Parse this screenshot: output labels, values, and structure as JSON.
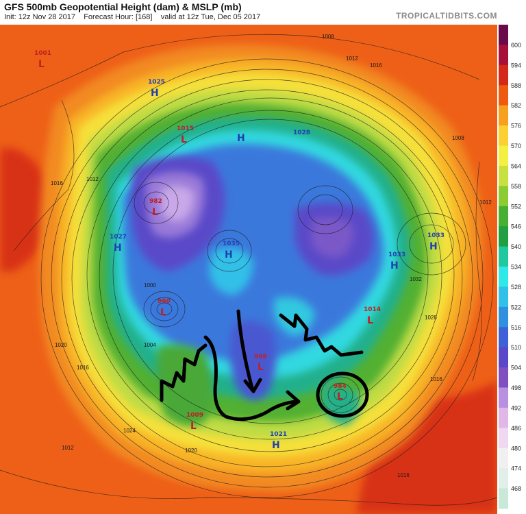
{
  "header": {
    "title": "GFS 500mb Geopotential Height (dam) & MSLP (mb)",
    "init_label": "Init: 12z Nov 28 2017",
    "forecast_label": "Forecast Hour: [168]",
    "valid_label": "valid at 12z Tue, Dec 05 2017",
    "brand": "TROPICALTIDBITS.COM"
  },
  "colorbar": {
    "ticks": [
      "600",
      "594",
      "588",
      "582",
      "576",
      "570",
      "564",
      "558",
      "552",
      "546",
      "540",
      "534",
      "528",
      "522",
      "516",
      "510",
      "504",
      "498",
      "492",
      "486",
      "480",
      "474",
      "468"
    ],
    "colors": [
      "#6a0a4a",
      "#a8103a",
      "#d42818",
      "#ee5a10",
      "#f7a020",
      "#fbd030",
      "#f4f040",
      "#c8e040",
      "#8ccc30",
      "#48b030",
      "#20a040",
      "#20c8a0",
      "#30e8e8",
      "#30c0e8",
      "#3090e0",
      "#4060d8",
      "#5a48c8",
      "#8050c0",
      "#b890e0",
      "#e0b8e8",
      "#f0d8f0",
      "#f0f0f0",
      "#e0f0e8",
      "#c8e8d8"
    ]
  },
  "map": {
    "highs": [
      {
        "id": "h1025",
        "value": "1025",
        "label": "H"
      },
      {
        "id": "h1027",
        "value": "1027",
        "label": "H"
      },
      {
        "id": "h1035",
        "value": "1035",
        "label": "H"
      },
      {
        "id": "h1033a",
        "value": "1033",
        "label": "H"
      },
      {
        "id": "h1033b",
        "value": "1033",
        "label": "H"
      },
      {
        "id": "h1021",
        "value": "1021",
        "label": "H"
      },
      {
        "id": "h1028",
        "value": "1028",
        "label": "H"
      }
    ],
    "lows": [
      {
        "id": "l1001",
        "value": "1001",
        "label": "L"
      },
      {
        "id": "l1015",
        "value": "1015",
        "label": "L"
      },
      {
        "id": "l982",
        "value": "982",
        "label": "L"
      },
      {
        "id": "l960",
        "value": "960",
        "label": "L"
      },
      {
        "id": "l998",
        "value": "998",
        "label": "L"
      },
      {
        "id": "l1009",
        "value": "1009",
        "label": "L"
      },
      {
        "id": "l984",
        "value": "984",
        "label": "L"
      },
      {
        "id": "l1014",
        "value": "1014",
        "label": "L"
      }
    ],
    "isobars": [
      "1016",
      "1012",
      "1020",
      "1024",
      "1008",
      "1004",
      "1000",
      "1028",
      "1032"
    ]
  }
}
